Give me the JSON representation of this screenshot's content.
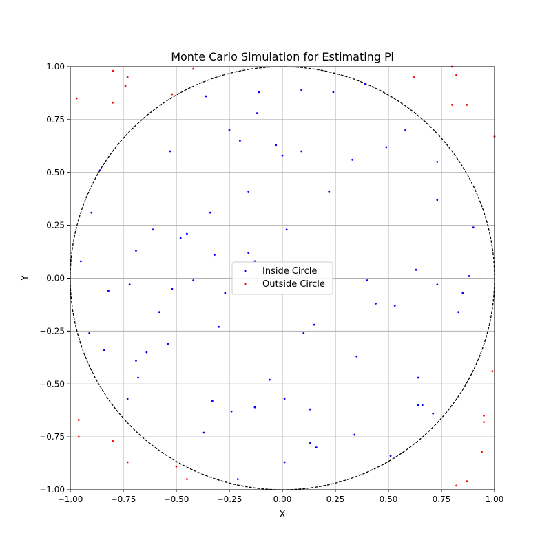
{
  "chart_data": {
    "type": "scatter",
    "title": "Monte Carlo Simulation for Estimating Pi",
    "xlabel": "X",
    "ylabel": "Y",
    "xlim": [
      -1.0,
      1.0
    ],
    "ylim": [
      -1.0,
      1.0
    ],
    "x_ticks": [
      -1.0,
      -0.75,
      -0.5,
      -0.25,
      0.0,
      0.25,
      0.5,
      0.75,
      1.0
    ],
    "y_ticks": [
      -1.0,
      -0.75,
      -0.5,
      -0.25,
      0.0,
      0.25,
      0.5,
      0.75,
      1.0
    ],
    "x_tick_labels": [
      "−1.00",
      "−0.75",
      "−0.50",
      "−0.25",
      "0.00",
      "0.25",
      "0.50",
      "0.75",
      "1.00"
    ],
    "y_tick_labels": [
      "−1.00",
      "−0.75",
      "−0.50",
      "−0.25",
      "0.00",
      "0.25",
      "0.50",
      "0.75",
      "1.00"
    ],
    "grid": true,
    "legend_position": "center",
    "reference_curve": {
      "shape": "unit-circle",
      "radius": 1.0,
      "color": "#000000",
      "style": "dashed"
    },
    "series": [
      {
        "name": "Inside Circle",
        "color": "#0000ff",
        "points": [
          [
            -0.95,
            0.08
          ],
          [
            -0.91,
            -0.26
          ],
          [
            -0.9,
            0.31
          ],
          [
            -0.86,
            0.51
          ],
          [
            -0.84,
            -0.34
          ],
          [
            -0.82,
            -0.06
          ],
          [
            -0.73,
            -0.57
          ],
          [
            -0.72,
            -0.03
          ],
          [
            -0.69,
            -0.39
          ],
          [
            -0.69,
            0.13
          ],
          [
            -0.68,
            -0.47
          ],
          [
            -0.64,
            -0.35
          ],
          [
            -0.61,
            0.23
          ],
          [
            -0.58,
            -0.16
          ],
          [
            -0.54,
            -0.31
          ],
          [
            -0.53,
            0.6
          ],
          [
            -0.52,
            -0.05
          ],
          [
            -0.48,
            0.19
          ],
          [
            -0.45,
            0.21
          ],
          [
            -0.42,
            -0.01
          ],
          [
            -0.37,
            -0.73
          ],
          [
            -0.36,
            0.86
          ],
          [
            -0.34,
            0.31
          ],
          [
            -0.33,
            -0.58
          ],
          [
            -0.32,
            0.11
          ],
          [
            -0.3,
            -0.23
          ],
          [
            -0.27,
            -0.07
          ],
          [
            -0.25,
            0.7
          ],
          [
            -0.24,
            -0.63
          ],
          [
            -0.21,
            -0.95
          ],
          [
            -0.2,
            0.65
          ],
          [
            -0.16,
            0.41
          ],
          [
            -0.16,
            0.12
          ],
          [
            -0.13,
            0.08
          ],
          [
            -0.13,
            -0.61
          ],
          [
            -0.12,
            0.78
          ],
          [
            -0.11,
            0.88
          ],
          [
            -0.06,
            -0.48
          ],
          [
            -0.03,
            0.63
          ],
          [
            0.0,
            0.58
          ],
          [
            0.01,
            -0.57
          ],
          [
            0.01,
            -0.87
          ],
          [
            0.02,
            0.23
          ],
          [
            0.09,
            0.6
          ],
          [
            0.09,
            0.89
          ],
          [
            0.1,
            -0.26
          ],
          [
            0.13,
            -0.62
          ],
          [
            0.13,
            -0.78
          ],
          [
            0.15,
            -0.22
          ],
          [
            0.16,
            -0.8
          ],
          [
            0.22,
            0.41
          ],
          [
            0.24,
            0.88
          ],
          [
            0.33,
            0.56
          ],
          [
            0.34,
            -0.74
          ],
          [
            0.35,
            -0.37
          ],
          [
            0.39,
            0.92
          ],
          [
            0.4,
            -0.01
          ],
          [
            0.44,
            -0.12
          ],
          [
            0.49,
            0.62
          ],
          [
            0.51,
            -0.84
          ],
          [
            0.53,
            -0.13
          ],
          [
            0.58,
            0.7
          ],
          [
            0.63,
            0.04
          ],
          [
            0.64,
            -0.6
          ],
          [
            0.64,
            -0.47
          ],
          [
            0.66,
            -0.6
          ],
          [
            0.71,
            -0.64
          ],
          [
            0.73,
            0.55
          ],
          [
            0.73,
            0.37
          ],
          [
            0.73,
            -0.03
          ],
          [
            0.83,
            -0.16
          ],
          [
            0.85,
            -0.07
          ],
          [
            0.88,
            0.01
          ],
          [
            0.9,
            0.24
          ]
        ]
      },
      {
        "name": "Outside Circle",
        "color": "#ff0000",
        "points": [
          [
            -0.97,
            0.85
          ],
          [
            -0.96,
            -0.67
          ],
          [
            -0.96,
            -0.75
          ],
          [
            -0.8,
            0.98
          ],
          [
            -0.8,
            0.83
          ],
          [
            -0.8,
            -0.77
          ],
          [
            -0.74,
            0.91
          ],
          [
            -0.73,
            0.95
          ],
          [
            -0.73,
            -0.87
          ],
          [
            -0.52,
            0.87
          ],
          [
            -0.5,
            -0.89
          ],
          [
            -0.45,
            -0.95
          ],
          [
            -0.42,
            0.99
          ],
          [
            0.62,
            0.95
          ],
          [
            0.8,
            1.0
          ],
          [
            0.8,
            0.82
          ],
          [
            0.82,
            0.96
          ],
          [
            0.82,
            -0.98
          ],
          [
            0.87,
            0.82
          ],
          [
            0.87,
            -0.96
          ],
          [
            0.94,
            -0.82
          ],
          [
            0.95,
            -0.65
          ],
          [
            0.95,
            -0.68
          ],
          [
            0.99,
            -0.44
          ],
          [
            1.0,
            0.67
          ]
        ]
      }
    ]
  }
}
